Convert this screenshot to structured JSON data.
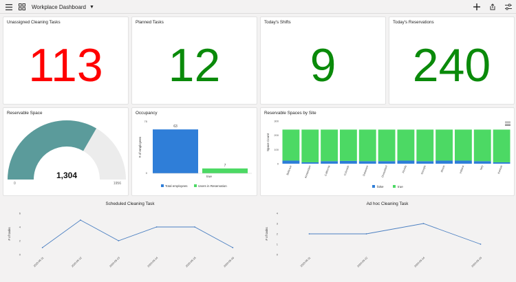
{
  "header": {
    "title": "Workplace Dashboard",
    "icons": [
      "menu-icon",
      "grid-icon",
      "caret-down-icon",
      "plus-icon",
      "share-icon",
      "filter-sliders-icon"
    ]
  },
  "kpis": [
    {
      "title": "Unassigned Cleaning Tasks",
      "value": "113",
      "color": "#ff0000"
    },
    {
      "title": "Planned Tasks",
      "value": "12",
      "color": "#0a8a0a"
    },
    {
      "title": "Today's Shifts",
      "value": "9",
      "color": "#0a8a0a"
    },
    {
      "title": "Today's Reservations",
      "value": "240",
      "color": "#0a8a0a"
    }
  ],
  "gauge": {
    "title": "Reservable Space",
    "value": "1,304",
    "min_label": "0",
    "max_label": "1956",
    "fill_fraction": 0.667,
    "fill_color": "#5b9b9b",
    "track_color": "#ececec"
  },
  "occupancy": {
    "title": "Occupancy",
    "ylabel": "# of employees",
    "xlabel": "true",
    "yticks": [
      "75",
      "0"
    ],
    "bars": [
      {
        "name": "Total employees",
        "value": 63,
        "label": "63",
        "color": "#2f7ed8"
      },
      {
        "name": "Users in Reservation",
        "value": 7,
        "label": "7",
        "color": "#4cd964"
      }
    ],
    "ymax": 75
  },
  "sites": {
    "title": "Reservable Spaces by Site",
    "ylabel": "Space Count",
    "yticks": [
      "300",
      "200",
      "100",
      "0"
    ],
    "ymax": 300,
    "categories": [
      "Bellevue",
      "Amsterdam",
      "California",
      "Colorado",
      "Delaware",
      "Dusseldorf",
      "Florida",
      "Georgia",
      "Illinois",
      "Indiana",
      "Italy",
      "Kansas"
    ],
    "series": [
      {
        "name": "false",
        "color": "#2f7ed8",
        "values": [
          22,
          10,
          18,
          20,
          18,
          18,
          22,
          18,
          22,
          22,
          18,
          10
        ]
      },
      {
        "name": "true",
        "color": "#4cd964",
        "values": [
          218,
          230,
          222,
          220,
          222,
          222,
          218,
          222,
          218,
          218,
          222,
          230
        ]
      }
    ]
  },
  "scheduled": {
    "title": "Scheduled Cleaning Task",
    "ylabel": "# of tasks",
    "yticks": [
      "6",
      "4",
      "2",
      "0"
    ],
    "ymax": 6,
    "x": [
      "2020-05-11",
      "2020-05-12",
      "2020-05-13",
      "2020-05-14",
      "2020-05-15",
      "2020-05-16"
    ],
    "values": [
      1,
      5,
      2,
      4,
      4,
      1
    ],
    "color": "#4a7fc1"
  },
  "adhoc": {
    "title": "Ad hoc Cleaning Task",
    "ylabel": "# of tasks",
    "yticks": [
      "4",
      "3",
      "2",
      "1",
      "0"
    ],
    "ymax": 4,
    "x": [
      "2020-05-11",
      "2020-05-12",
      "2020-05-14",
      "2020-05-15"
    ],
    "values": [
      2,
      2,
      3,
      1
    ],
    "color": "#4a7fc1"
  }
}
